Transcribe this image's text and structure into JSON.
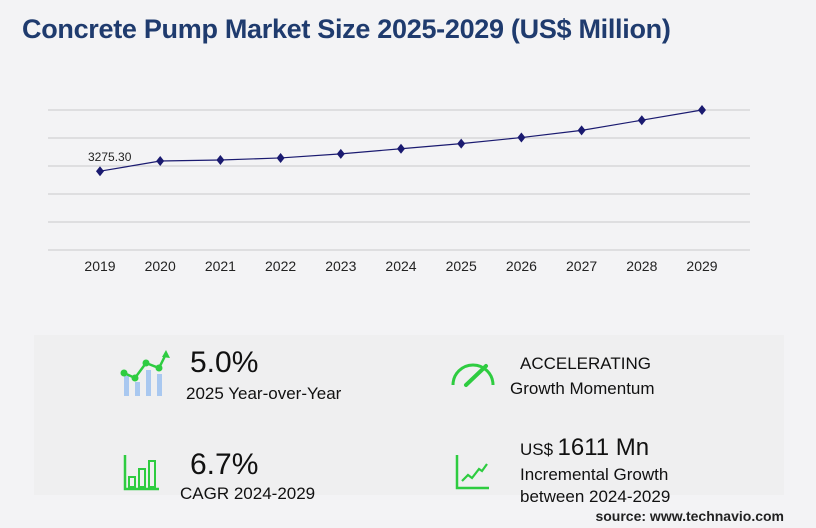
{
  "title": "Concrete Pump Market Size 2025-2029 (US$ Million)",
  "chart_data": {
    "type": "line",
    "title": "Concrete Pump Market Size 2025-2029 (US$ Million)",
    "categories": [
      "2019",
      "2020",
      "2021",
      "2022",
      "2023",
      "2024",
      "2025",
      "2026",
      "2027",
      "2028",
      "2029"
    ],
    "values": [
      3275.3,
      3699,
      3742,
      3826,
      3996,
      4208,
      4420,
      4674,
      4971,
      5395,
      5819
    ],
    "data_labels": {
      "0": "3275.30"
    },
    "ylim": [
      0,
      5819
    ],
    "grid": true,
    "line_color": "#1a1a70"
  },
  "stats": {
    "yoy_value": "5.0%",
    "yoy_label": "2025 Year-over-Year",
    "momentum_value": "ACCELERATING",
    "momentum_label": "Growth Momentum",
    "cagr_value": "6.7%",
    "cagr_label": "CAGR 2024-2029",
    "incr_prefix": "US$",
    "incr_value": "1611 Mn",
    "incr_label1": "Incremental Growth",
    "incr_label2": "between 2024-2029"
  },
  "source": "source: www.technavio.com",
  "colors": {
    "accent": "#2ecc40",
    "title": "#1f3b6e"
  }
}
